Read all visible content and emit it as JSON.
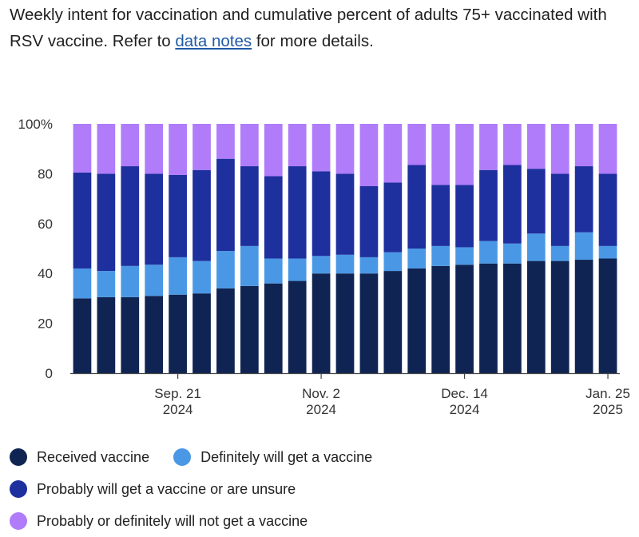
{
  "heading": {
    "text_before": "Weekly intent for vaccination and cumulative percent of adults 75+ vaccinated with RSV vaccine. Refer to ",
    "link_text": "data notes",
    "text_after": " for more details."
  },
  "chart_data": {
    "type": "bar",
    "stacked": true,
    "ylim": [
      0,
      100
    ],
    "yticks": [
      "0",
      "20",
      "40",
      "60",
      "80",
      "100%"
    ],
    "x_tick_labels": [
      {
        "index": 4,
        "line1": "Sep. 21",
        "line2": "2024"
      },
      {
        "index": 10,
        "line1": "Nov. 2",
        "line2": "2024"
      },
      {
        "index": 16,
        "line1": "Dec. 14",
        "line2": "2024"
      },
      {
        "index": 22,
        "line1": "Jan. 25",
        "line2": "2025"
      }
    ],
    "series": [
      {
        "name": "Received vaccine",
        "color": "#0f2452",
        "values": [
          30,
          30.5,
          30.5,
          31,
          31.5,
          32,
          34,
          35,
          36,
          37,
          40,
          40,
          40,
          41,
          42,
          43,
          43.5,
          44,
          44,
          45,
          45,
          45.5,
          46
        ]
      },
      {
        "name": "Definitely will get a vaccine",
        "color": "#4a98e5",
        "values": [
          12,
          10.5,
          12.5,
          12.5,
          15,
          13,
          15,
          16,
          10,
          9,
          7,
          7.5,
          6.5,
          7.5,
          8,
          8,
          7,
          9,
          8,
          11,
          6,
          11,
          5
        ]
      },
      {
        "name": "Probably will get a vaccine or are unsure",
        "color": "#1e2f9e",
        "values": [
          38.5,
          39,
          40,
          36.5,
          33,
          36.5,
          37,
          32,
          33,
          37,
          34,
          32.5,
          28.5,
          28,
          33.5,
          24.5,
          25,
          28.5,
          31.5,
          26,
          29,
          26.5,
          29
        ]
      },
      {
        "name": "Probably or definitely will not get a vaccine",
        "color": "#b07cfa",
        "values": [
          19.5,
          20,
          17,
          20,
          20.5,
          18.5,
          14,
          17,
          21,
          17,
          19,
          20,
          25,
          23.5,
          16.5,
          24.5,
          24.5,
          18.5,
          16.5,
          18,
          20,
          17,
          20
        ]
      }
    ]
  }
}
